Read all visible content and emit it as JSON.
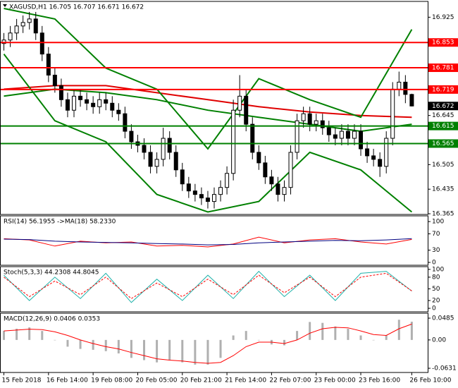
{
  "chart_data": [
    {
      "type": "candlestick",
      "title": "XAGUSD,H1  16.705 16.707 16.671 16.672",
      "xlim": [
        -0.5,
        66.5
      ],
      "xticks": [
        {
          "value": 0,
          "label": "15 Feb 2018"
        },
        {
          "value": 7,
          "label": "16 Feb 14:00"
        },
        {
          "value": 14,
          "label": "19 Feb 08:00"
        },
        {
          "value": 21,
          "label": "20 Feb 05:00"
        },
        {
          "value": 28,
          "label": "20 Feb 21:00"
        },
        {
          "value": 35,
          "label": "21 Feb 14:00"
        },
        {
          "value": 42,
          "label": "22 Feb 07:00"
        },
        {
          "value": 49,
          "label": "23 Feb 00:00"
        },
        {
          "value": 56,
          "label": "23 Feb 16:00"
        },
        {
          "value": 64,
          "label": "26 Feb 10:00"
        }
      ],
      "ylim": [
        16.363,
        16.97
      ],
      "yticks": [
        16.365,
        16.435,
        16.505,
        16.645,
        16.925
      ],
      "open": [
        16.85,
        16.86,
        16.88,
        16.9,
        16.91,
        16.92,
        16.88,
        16.82,
        16.76,
        16.73,
        16.69,
        16.66,
        16.7,
        16.69,
        16.68,
        16.67,
        16.69,
        16.68,
        16.66,
        16.65,
        16.6,
        16.57,
        16.56,
        16.54,
        16.5,
        16.52,
        16.58,
        16.54,
        16.49,
        16.45,
        16.43,
        16.42,
        16.41,
        16.4,
        16.42,
        16.44,
        16.48,
        16.66,
        16.7,
        16.62,
        16.54,
        16.51,
        16.47,
        16.45,
        16.42,
        16.44,
        16.54,
        16.63,
        16.65,
        16.62,
        16.63,
        16.61,
        16.59,
        16.58,
        16.6,
        16.58,
        16.6,
        16.55,
        16.53,
        16.52,
        16.5,
        16.58,
        16.72,
        16.74,
        16.705
      ],
      "high": [
        16.88,
        16.9,
        16.92,
        16.93,
        16.94,
        16.94,
        16.9,
        16.84,
        16.78,
        16.75,
        16.71,
        16.72,
        16.72,
        16.71,
        16.7,
        16.71,
        16.71,
        16.7,
        16.68,
        16.67,
        16.62,
        16.59,
        16.58,
        16.56,
        16.54,
        16.61,
        16.6,
        16.56,
        16.51,
        16.47,
        16.45,
        16.44,
        16.43,
        16.44,
        16.46,
        16.5,
        16.69,
        16.76,
        16.72,
        16.64,
        16.56,
        16.53,
        16.49,
        16.47,
        16.46,
        16.56,
        16.65,
        16.67,
        16.67,
        16.65,
        16.65,
        16.63,
        16.61,
        16.62,
        16.62,
        16.62,
        16.62,
        16.57,
        16.55,
        16.54,
        16.6,
        16.74,
        16.77,
        16.76,
        16.707
      ],
      "low": [
        16.83,
        16.84,
        16.86,
        16.88,
        16.89,
        16.86,
        16.8,
        16.74,
        16.71,
        16.67,
        16.64,
        16.64,
        16.67,
        16.66,
        16.65,
        16.65,
        16.66,
        16.64,
        16.63,
        16.58,
        16.55,
        16.54,
        16.52,
        16.48,
        16.48,
        16.5,
        16.52,
        16.47,
        16.43,
        16.41,
        16.4,
        16.39,
        16.38,
        16.38,
        16.4,
        16.42,
        16.46,
        16.64,
        16.6,
        16.52,
        16.49,
        16.45,
        16.43,
        16.4,
        16.4,
        16.42,
        16.52,
        16.61,
        16.6,
        16.6,
        16.59,
        16.57,
        16.56,
        16.56,
        16.56,
        16.56,
        16.53,
        16.51,
        16.5,
        16.47,
        16.48,
        16.56,
        16.7,
        16.68,
        16.671
      ],
      "close": [
        16.86,
        16.88,
        16.9,
        16.91,
        16.92,
        16.88,
        16.82,
        16.76,
        16.73,
        16.69,
        16.66,
        16.7,
        16.69,
        16.68,
        16.67,
        16.69,
        16.68,
        16.66,
        16.65,
        16.6,
        16.57,
        16.56,
        16.54,
        16.5,
        16.52,
        16.58,
        16.54,
        16.49,
        16.45,
        16.43,
        16.42,
        16.41,
        16.4,
        16.42,
        16.44,
        16.48,
        16.66,
        16.7,
        16.62,
        16.54,
        16.51,
        16.47,
        16.45,
        16.42,
        16.44,
        16.54,
        16.63,
        16.65,
        16.62,
        16.63,
        16.61,
        16.59,
        16.58,
        16.6,
        16.58,
        16.6,
        16.55,
        16.53,
        16.52,
        16.5,
        16.58,
        16.72,
        16.74,
        16.705,
        16.672
      ],
      "series": [
        {
          "color": "#e00000",
          "x": [
            0,
            8,
            16,
            24,
            32,
            40,
            48,
            56,
            64
          ],
          "values": [
            16.72,
            16.73,
            16.73,
            16.71,
            16.69,
            16.67,
            16.655,
            16.645,
            16.64
          ]
        },
        {
          "color": "#008000",
          "x": [
            0,
            8,
            16,
            24,
            32,
            40,
            48,
            56,
            64
          ],
          "values": [
            16.7,
            16.72,
            16.71,
            16.69,
            16.66,
            16.64,
            16.62,
            16.6,
            16.62
          ]
        },
        {
          "color": "#008000",
          "x": [
            0,
            8,
            16,
            24,
            32,
            40,
            48,
            56,
            64
          ],
          "values": [
            16.95,
            16.92,
            16.78,
            16.72,
            16.55,
            16.75,
            16.69,
            16.64,
            16.89
          ]
        },
        {
          "color": "#008000",
          "x": [
            0,
            8,
            16,
            24,
            32,
            40,
            48,
            56,
            64
          ],
          "values": [
            16.82,
            16.63,
            16.57,
            16.42,
            16.37,
            16.4,
            16.54,
            16.49,
            16.37
          ]
        }
      ],
      "levels": [
        {
          "value": 16.853,
          "color": "#ff0000"
        },
        {
          "value": 16.781,
          "color": "#ff0000"
        },
        {
          "value": 16.719,
          "color": "#ff0000"
        },
        {
          "value": 16.615,
          "color": "#008000"
        },
        {
          "value": 16.565,
          "color": "#008000"
        }
      ],
      "last_price": 16.672
    },
    {
      "type": "line",
      "title": "RSI(14) 56.1955  ->MA(18) 58.2330",
      "ylim": [
        -7,
        114
      ],
      "yticks": [
        0,
        30,
        70,
        100
      ],
      "series": [
        {
          "color": "#ff0000",
          "x": [
            0,
            4,
            8,
            12,
            16,
            20,
            24,
            28,
            32,
            36,
            40,
            44,
            48,
            52,
            56,
            60,
            64
          ],
          "values": [
            58,
            55,
            40,
            52,
            48,
            50,
            40,
            42,
            38,
            45,
            62,
            48,
            55,
            58,
            50,
            45,
            56.1955
          ]
        },
        {
          "color": "#000080",
          "x": [
            0,
            4,
            8,
            12,
            16,
            20,
            24,
            28,
            32,
            36,
            40,
            44,
            48,
            52,
            56,
            60,
            64
          ],
          "values": [
            57,
            56,
            52,
            50,
            49,
            48,
            46,
            45,
            43,
            44,
            48,
            50,
            52,
            54,
            53,
            55,
            58.233
          ]
        }
      ]
    },
    {
      "type": "line",
      "title": "Stoch(5,3,3) 44.2308 44.8045",
      "ylim": [
        -9,
        107
      ],
      "yticks": [
        0,
        20,
        50,
        80,
        100
      ],
      "series": [
        {
          "color": "#20b2aa",
          "x": [
            0,
            4,
            8,
            12,
            16,
            20,
            24,
            28,
            32,
            36,
            40,
            44,
            48,
            52,
            56,
            60,
            64
          ],
          "values": [
            85,
            20,
            80,
            25,
            90,
            15,
            75,
            20,
            85,
            25,
            95,
            30,
            85,
            20,
            90,
            95,
            44.2308
          ]
        },
        {
          "color": "#ff0000",
          "dash": true,
          "x": [
            0,
            4,
            8,
            12,
            16,
            20,
            24,
            28,
            32,
            36,
            40,
            44,
            48,
            52,
            56,
            60,
            64
          ],
          "values": [
            80,
            30,
            70,
            35,
            80,
            25,
            65,
            30,
            75,
            35,
            85,
            40,
            80,
            30,
            80,
            90,
            44.8045
          ]
        }
      ]
    },
    {
      "type": "macd",
      "title": "MACD(12,26,9) 0.0406 0.0353",
      "ylim": [
        -0.0725,
        0.0595
      ],
      "yticks": [
        -0.0631,
        {
          "value": 0,
          "label": "0.00"
        },
        0.0485
      ],
      "histogram": {
        "color": "#b0b0b0",
        "x": [
          0,
          2,
          4,
          6,
          8,
          10,
          12,
          14,
          16,
          18,
          20,
          22,
          24,
          26,
          28,
          30,
          32,
          34,
          36,
          38,
          40,
          42,
          44,
          46,
          48,
          50,
          52,
          54,
          56,
          58,
          60,
          62,
          64
        ],
        "values": [
          0.02,
          0.025,
          0.028,
          0.02,
          0.0,
          -0.015,
          -0.02,
          -0.022,
          -0.025,
          -0.03,
          -0.04,
          -0.045,
          -0.05,
          -0.045,
          -0.05,
          -0.055,
          -0.055,
          -0.04,
          0.01,
          0.02,
          0.0,
          -0.01,
          -0.012,
          0.02,
          0.04,
          0.038,
          0.03,
          0.025,
          0.01,
          0.0,
          0.01,
          0.045,
          0.0406
        ]
      },
      "series": [
        {
          "color": "#ff0000",
          "x": [
            0,
            2,
            4,
            6,
            8,
            10,
            12,
            14,
            16,
            18,
            20,
            22,
            24,
            26,
            28,
            30,
            32,
            34,
            36,
            38,
            40,
            42,
            44,
            46,
            48,
            50,
            52,
            54,
            56,
            58,
            60,
            62,
            64
          ],
          "values": [
            0.02,
            0.022,
            0.024,
            0.023,
            0.018,
            0.01,
            0.0,
            -0.008,
            -0.015,
            -0.02,
            -0.028,
            -0.035,
            -0.042,
            -0.045,
            -0.047,
            -0.05,
            -0.052,
            -0.05,
            -0.035,
            -0.015,
            -0.005,
            -0.005,
            -0.008,
            0.0,
            0.015,
            0.025,
            0.028,
            0.027,
            0.02,
            0.012,
            0.01,
            0.025,
            0.0353
          ]
        }
      ]
    }
  ]
}
